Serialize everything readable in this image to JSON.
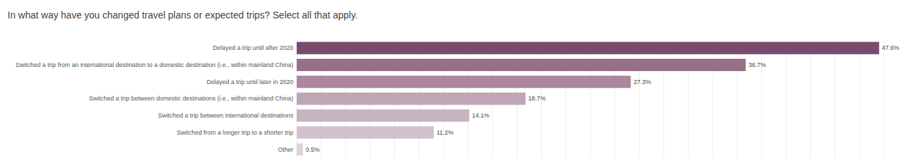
{
  "chart_data": {
    "type": "bar",
    "title": "In what way have you changed travel plans or expected trips? Select all that apply.",
    "categories": [
      "Delayed a trip until after 2020",
      "Switched a trip from an international destination to a domestic destination (i.e., within mainland China)",
      "Delayed a trip until later in 2020",
      "Switched a trip between domestic destinations (i.e., within mainland China)",
      "Switched a trip between international destinations",
      "Switched from a longer trip to a shorter trip",
      "Other"
    ],
    "values": [
      47.6,
      36.7,
      27.3,
      18.7,
      14.1,
      11.2,
      0.5
    ],
    "value_labels": [
      "47.6%",
      "36.7%",
      "27.3%",
      "18.7%",
      "14.1%",
      "11.2%",
      "0.5%"
    ],
    "colors": [
      "#7b4a6e",
      "#977088",
      "#ab889f",
      "#bfa5b6",
      "#c9b4c2",
      "#d2c1cc",
      "#ddd3da"
    ],
    "xlim": [
      0,
      48
    ],
    "xticks": [
      0,
      2,
      4,
      6,
      8,
      10,
      12,
      14,
      16,
      18,
      20,
      22,
      24,
      26,
      28,
      30,
      32,
      34,
      36,
      38,
      40,
      42,
      44,
      46,
      48
    ],
    "grid": true,
    "orientation": "horizontal",
    "data_labels": true,
    "tick_labels": false
  }
}
